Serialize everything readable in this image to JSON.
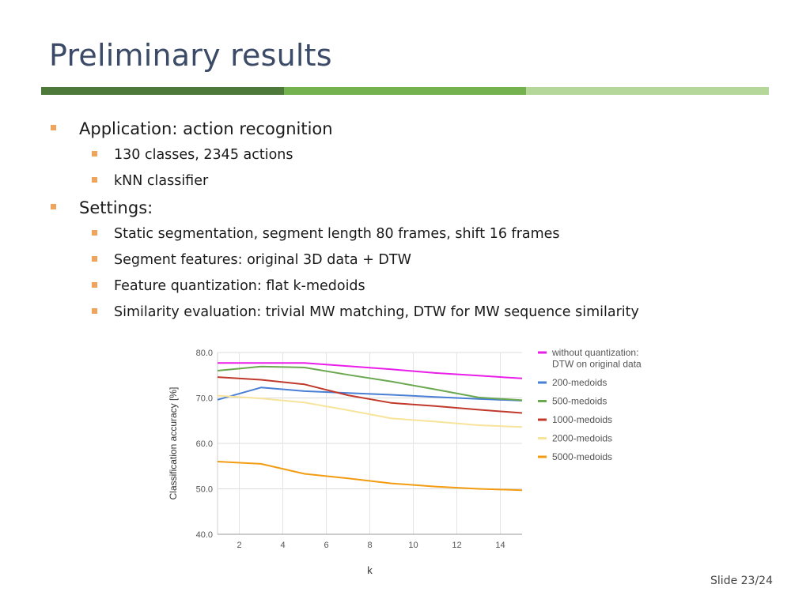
{
  "slide": {
    "title": "Preliminary results",
    "slide_number": "Slide 23/24",
    "accent_colors": [
      "#4d7a3a",
      "#74b14f",
      "#b5d89a"
    ],
    "bullet_color": "#f0a35a"
  },
  "bullets": [
    {
      "text": "Application: action recognition",
      "children": [
        {
          "text": "130 classes, 2345 actions"
        },
        {
          "text": "kNN classifier"
        }
      ]
    },
    {
      "text": "Settings:",
      "children": [
        {
          "text": "Static segmentation, segment length 80 frames, shift 16 frames"
        },
        {
          "text": "Segment features: original 3D data + DTW"
        },
        {
          "text": "Feature quantization: flat k-medoids"
        },
        {
          "text": "Similarity evaluation: trivial MW matching, DTW for MW sequence similarity"
        }
      ]
    }
  ],
  "chart_data": {
    "type": "line",
    "title": "",
    "xlabel": "k",
    "ylabel": "Classification accuracy [%]",
    "xlim": [
      1,
      15
    ],
    "ylim": [
      40,
      80
    ],
    "x_ticks": [
      2,
      4,
      6,
      8,
      10,
      12,
      14
    ],
    "y_ticks": [
      "40.0",
      "50.0",
      "60.0",
      "70.0",
      "80.0"
    ],
    "grid": true,
    "legend_position": "right",
    "x": [
      1,
      3,
      5,
      7,
      9,
      11,
      13,
      15
    ],
    "series": [
      {
        "name": "without quantization: DTW on original data",
        "legend_lines": [
          "without quantization:",
          "DTW on original data"
        ],
        "color": "#e91ee9",
        "values": [
          77.7,
          77.7,
          77.7,
          77.0,
          76.3,
          75.5,
          74.9,
          74.3
        ]
      },
      {
        "name": "200-medoids",
        "legend_lines": [
          "200-medoids"
        ],
        "color": "#4a7fd6",
        "values": [
          69.6,
          72.3,
          71.5,
          71.1,
          70.7,
          70.2,
          69.8,
          69.4
        ]
      },
      {
        "name": "500-medoids",
        "legend_lines": [
          "500-medoids"
        ],
        "color": "#6aa84f",
        "values": [
          76.0,
          76.9,
          76.7,
          75.1,
          73.6,
          71.9,
          70.1,
          69.5
        ]
      },
      {
        "name": "1000-medoids",
        "legend_lines": [
          "1000-medoids"
        ],
        "color": "#c0392b",
        "values": [
          74.6,
          74.0,
          73.0,
          70.6,
          68.9,
          68.2,
          67.4,
          66.7
        ]
      },
      {
        "name": "2000-medoids",
        "legend_lines": [
          "2000-medoids"
        ],
        "color": "#f7e49a",
        "values": [
          70.5,
          69.9,
          69.0,
          67.3,
          65.5,
          64.8,
          64.0,
          63.6
        ]
      },
      {
        "name": "5000-medoids",
        "legend_lines": [
          "5000-medoids"
        ],
        "color": "#f39c12",
        "values": [
          56.0,
          55.5,
          53.3,
          52.3,
          51.2,
          50.5,
          50.0,
          49.7
        ]
      }
    ]
  }
}
